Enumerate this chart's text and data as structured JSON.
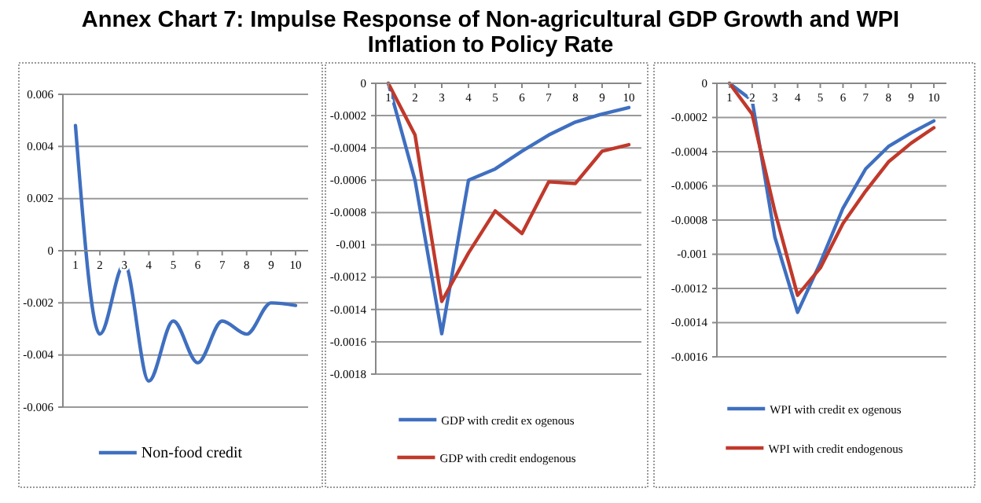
{
  "chart_data": [
    {
      "type": "line",
      "title": "Annex Chart 7: Impulse Response of Non-agricultural GDP Growth and WPI Inflation to Policy Rate",
      "categories": [
        "1",
        "2",
        "3",
        "4",
        "5",
        "6",
        "7",
        "8",
        "9",
        "10"
      ],
      "series": [
        {
          "name": "Non-food credit",
          "color": "#3f6fc0",
          "values": [
            0.0048,
            -0.0032,
            -0.0005,
            -0.005,
            -0.0027,
            -0.0043,
            -0.0027,
            -0.0032,
            -0.002,
            -0.0021
          ]
        }
      ],
      "ylim": [
        -0.006,
        0.006
      ],
      "yticks": [
        -0.006,
        -0.004,
        -0.002,
        0,
        0.002,
        0.004,
        0.006
      ],
      "grid": "y",
      "legend": "bottom"
    },
    {
      "type": "line",
      "categories": [
        "1",
        "2",
        "3",
        "4",
        "5",
        "6",
        "7",
        "8",
        "9",
        "10"
      ],
      "series": [
        {
          "name": "GDP with credit ex ogenous",
          "color": "#3f6fc0",
          "values": [
            0,
            -0.0006,
            -0.00155,
            -0.0006,
            -0.00053,
            -0.00042,
            -0.00032,
            -0.00024,
            -0.00019,
            -0.00015
          ]
        },
        {
          "name": "GDP with credit endogenous",
          "color": "#c0392b",
          "values": [
            0,
            -0.00032,
            -0.00135,
            -0.00105,
            -0.00079,
            -0.00093,
            -0.00061,
            -0.00062,
            -0.00042,
            -0.00038
          ]
        }
      ],
      "ylim": [
        -0.0018,
        0
      ],
      "yticks": [
        -0.0018,
        -0.0016,
        -0.0014,
        -0.0012,
        -0.001,
        -0.0008,
        -0.0006,
        -0.0004,
        -0.0002,
        0
      ],
      "grid": "y",
      "legend": "bottom"
    },
    {
      "type": "line",
      "categories": [
        "1",
        "2",
        "3",
        "4",
        "5",
        "6",
        "7",
        "8",
        "9",
        "10"
      ],
      "series": [
        {
          "name": "WPI with credit ex ogenous",
          "color": "#3f6fc0",
          "values": [
            0,
            -0.0001,
            -0.0009,
            -0.00134,
            -0.00105,
            -0.00073,
            -0.0005,
            -0.00037,
            -0.00029,
            -0.00022
          ]
        },
        {
          "name": "WPI with credit endogenous",
          "color": "#c0392b",
          "values": [
            0,
            -0.00018,
            -0.00075,
            -0.00124,
            -0.00108,
            -0.00082,
            -0.00063,
            -0.00046,
            -0.00035,
            -0.00026
          ]
        }
      ],
      "ylim": [
        -0.0016,
        0
      ],
      "yticks": [
        -0.0016,
        -0.0014,
        -0.0012,
        -0.001,
        -0.0008,
        -0.0006,
        -0.0004,
        -0.0002,
        0
      ],
      "grid": "y",
      "legend": "bottom"
    }
  ]
}
